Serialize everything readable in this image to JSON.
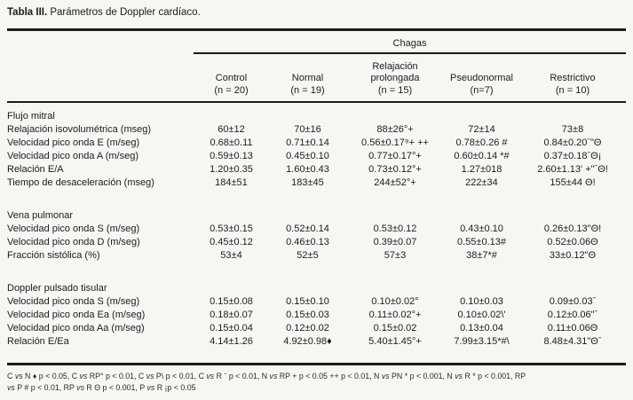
{
  "title": {
    "bold": "Tabla III.",
    "rest": " Parámetros de Doppler cardíaco."
  },
  "table": {
    "group_header": "Chagas",
    "columns": [
      {
        "lines": [
          "Control",
          "(n = 20)"
        ]
      },
      {
        "lines": [
          "Normal",
          "(n = 19)"
        ]
      },
      {
        "lines": [
          "Relajación",
          "prolongada",
          "(n = 15)"
        ]
      },
      {
        "lines": [
          "Pseudonormal",
          "(n=7)"
        ]
      },
      {
        "lines": [
          "Restrictivo",
          "(n = 10)"
        ]
      }
    ],
    "sections": [
      {
        "name": "Flujo mitral",
        "rows": [
          {
            "label": "Relajación isovolumétrica (mseg)",
            "values": [
              "60±12",
              "70±16",
              "88±26°+",
              "72±14",
              "73±8"
            ]
          },
          {
            "label": "Velocidad pico onda E (m/seg)",
            "values": [
              "0.68±0.11",
              "0.71±0.14",
              "0.56±0.17⁹+ ++",
              "0.78±0.26 #",
              "0.84±0.20ˉ\"Θ"
            ]
          },
          {
            "label": "Velocidad pico onda A (m/seg)",
            "values": [
              "0.59±0.13",
              "0.45±0.10",
              "0.77±0.17°+",
              "0.60±0.14 *#",
              "0.37±0.18ˉΘ¡"
            ]
          },
          {
            "label": "Relación E/A",
            "values": [
              "1.20±0.35",
              "1.60±0.43",
              "0.73±0.12°+",
              "1.27±018",
              "2.60±1.13' +\"ˉΘ!"
            ]
          },
          {
            "label": "Tiempo de desaceleración (mseg)",
            "values": [
              "184±51",
              "183±45",
              "244±52°+",
              "222±34",
              "155±44 Θ!"
            ]
          }
        ]
      },
      {
        "name": "Vena pulmonar",
        "rows": [
          {
            "label": "Velocidad pico onda S (m/seg)",
            "values": [
              "0.53±0.15",
              "0.52±0.14",
              "0.53±0.12",
              "0.43±0.10",
              "0.26±0.13\"Θ!"
            ]
          },
          {
            "label": "Velocidad pico onda D (m/seg)",
            "values": [
              "0.45±0.12",
              "0.46±0.13",
              "0.39±0.07",
              "0.55±0.13#",
              "0.52±0.06Θ"
            ]
          },
          {
            "label": "Fracción sistólica (%)",
            "values": [
              "53±4",
              "52±5",
              "57±3",
              "38±7*#",
              "33±0.12\"Θ"
            ]
          }
        ]
      },
      {
        "name": "Doppler pulsado tisular",
        "rows": [
          {
            "label": "Velocidad pico onda S (m/seg)",
            "values": [
              "0.15±0.08",
              "0.15±0.10",
              "0.10±0.02°",
              "0.10±0.03",
              "0.09±0.03ˉ"
            ]
          },
          {
            "label": "Velocidad pico onda Ea (m/seg)",
            "values": [
              "0.18±0.07",
              "0.15±0.03",
              "0.11±0.02°+",
              "0.10±0.02\\'",
              "0.12±0.06\"ˉ"
            ]
          },
          {
            "label": "Velocidad pico onda Aa (m/seg)",
            "values": [
              "0.15±0.04",
              "0.12±0.02",
              "0.15±0.02",
              "0.13±0.04",
              "0.11±0.06Θ"
            ]
          },
          {
            "label": "Relación E/Ea",
            "values": [
              "4.14±1.26",
              "4.92±0.98♦",
              "5.40±1.45°+",
              "7.99±3.15*#\\",
              "8.48±4.31\"Θˉ"
            ]
          }
        ]
      }
    ]
  },
  "footnote": {
    "line1": "C vs N ♦ p < 0.05, C vs RP° p < 0.01, C vs P\\ p < 0.01, C vs R ˉ p < 0.01, N vs RP + p < 0.05 ++ p < 0.01, N vs PN * p < 0.001, N vs R * p < 0.001, RP",
    "line2": "vs P # p < 0.01, RP vs R Θ p < 0.001, P vs R ¡p < 0.05"
  }
}
